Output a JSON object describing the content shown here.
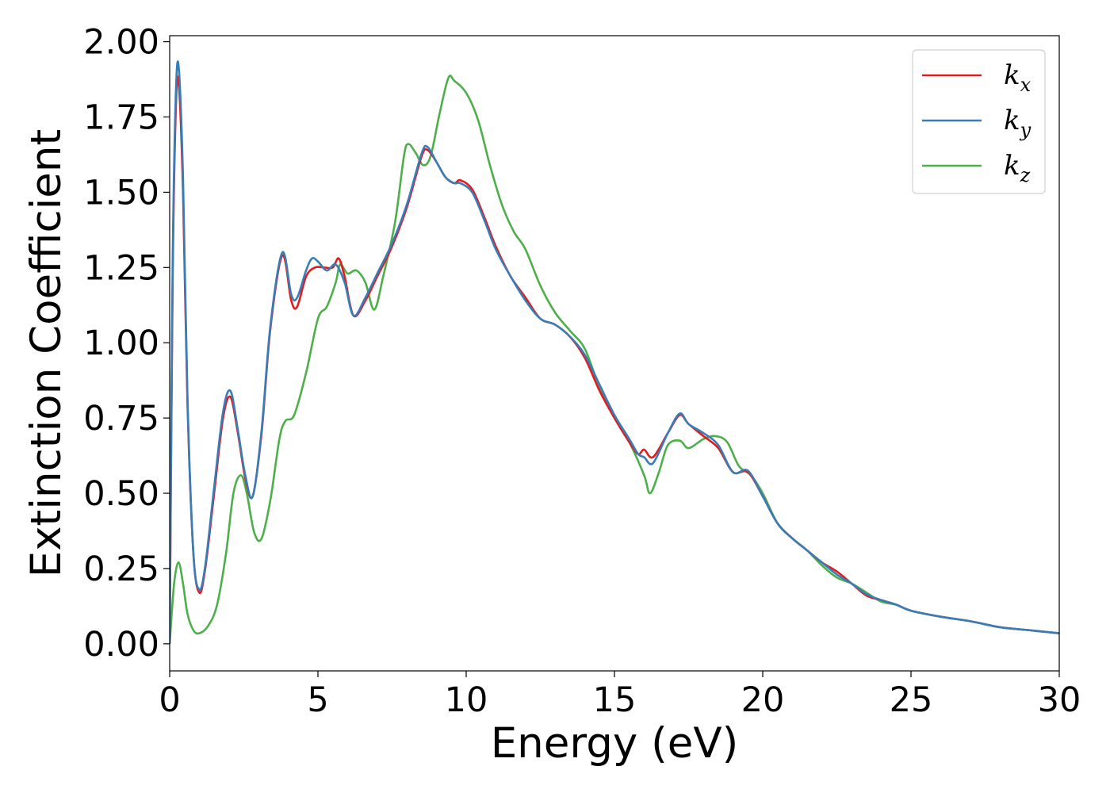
{
  "chart_data": {
    "type": "line",
    "title": "",
    "xlabel": "Energy (eV)",
    "ylabel": "Extinction Coefficient",
    "xlim": [
      0,
      30
    ],
    "ylim": [
      -0.09,
      2.02
    ],
    "xticks": [
      0,
      5,
      10,
      15,
      20,
      25,
      30
    ],
    "xtick_labels": [
      "0",
      "5",
      "10",
      "15",
      "20",
      "25",
      "30"
    ],
    "yticks": [
      0,
      0.25,
      0.5,
      0.75,
      1.0,
      1.25,
      1.5,
      1.75,
      2.0
    ],
    "ytick_labels": [
      "0.00",
      "0.25",
      "0.50",
      "0.75",
      "1.00",
      "1.25",
      "1.50",
      "1.75",
      "2.00"
    ],
    "grid": false,
    "legend_position": "top-right",
    "series": [
      {
        "name": "k_x",
        "label_base": "k",
        "label_sub": "x",
        "color": "#e41a1c",
        "x": [
          0,
          0.1,
          0.2,
          0.3,
          0.45,
          0.6,
          0.8,
          1.0,
          1.2,
          1.5,
          1.8,
          2.05,
          2.3,
          2.55,
          2.8,
          3.1,
          3.4,
          3.8,
          4.1,
          4.3,
          4.6,
          4.9,
          5.2,
          5.5,
          5.7,
          5.9,
          6.2,
          6.6,
          7.0,
          7.5,
          8.0,
          8.5,
          8.7,
          9.0,
          9.3,
          9.6,
          9.8,
          10.2,
          10.6,
          11.0,
          11.5,
          12.0,
          12.5,
          13.0,
          13.5,
          14.0,
          14.5,
          15.0,
          15.5,
          15.8,
          16.0,
          16.3,
          16.8,
          17.2,
          17.5,
          18.0,
          18.5,
          19.0,
          19.5,
          20.0,
          20.5,
          21.0,
          21.5,
          22.0,
          22.5,
          23.0,
          23.5,
          24.0,
          24.5,
          25.0,
          26.0,
          27.0,
          28.0,
          29.0,
          30.0
        ],
        "y": [
          0.0,
          1.2,
          1.75,
          1.87,
          1.5,
          0.8,
          0.3,
          0.17,
          0.25,
          0.5,
          0.75,
          0.82,
          0.7,
          0.55,
          0.49,
          0.7,
          1.05,
          1.29,
          1.14,
          1.12,
          1.22,
          1.25,
          1.25,
          1.25,
          1.28,
          1.22,
          1.09,
          1.14,
          1.22,
          1.32,
          1.45,
          1.62,
          1.64,
          1.6,
          1.55,
          1.53,
          1.54,
          1.51,
          1.42,
          1.32,
          1.22,
          1.15,
          1.08,
          1.06,
          1.02,
          0.95,
          0.84,
          0.75,
          0.67,
          0.63,
          0.645,
          0.62,
          0.7,
          0.76,
          0.73,
          0.69,
          0.65,
          0.57,
          0.57,
          0.49,
          0.4,
          0.35,
          0.31,
          0.27,
          0.24,
          0.2,
          0.16,
          0.145,
          0.13,
          0.11,
          0.09,
          0.075,
          0.055,
          0.045,
          0.035
        ]
      },
      {
        "name": "k_y",
        "label_base": "k",
        "label_sub": "y",
        "color": "#377eb8",
        "x": [
          0,
          0.1,
          0.2,
          0.3,
          0.45,
          0.6,
          0.8,
          1.0,
          1.2,
          1.5,
          1.8,
          2.05,
          2.3,
          2.55,
          2.8,
          3.1,
          3.4,
          3.8,
          4.1,
          4.3,
          4.6,
          4.8,
          5.0,
          5.3,
          5.6,
          5.9,
          6.2,
          6.6,
          7.0,
          7.5,
          8.0,
          8.5,
          8.7,
          9.0,
          9.3,
          9.6,
          9.8,
          10.2,
          10.6,
          11.0,
          11.5,
          12.0,
          12.5,
          13.0,
          13.5,
          14.0,
          14.5,
          15.0,
          15.5,
          15.8,
          16.0,
          16.3,
          16.8,
          17.2,
          17.5,
          18.0,
          18.5,
          19.0,
          19.5,
          20.0,
          20.5,
          21.0,
          21.5,
          22.0,
          22.5,
          23.0,
          23.5,
          24.0,
          24.5,
          25.0,
          26.0,
          27.0,
          28.0,
          29.0,
          30.0
        ],
        "y": [
          0.0,
          1.25,
          1.8,
          1.92,
          1.55,
          0.82,
          0.3,
          0.18,
          0.26,
          0.52,
          0.77,
          0.84,
          0.71,
          0.56,
          0.49,
          0.71,
          1.06,
          1.3,
          1.16,
          1.15,
          1.24,
          1.28,
          1.27,
          1.24,
          1.26,
          1.2,
          1.09,
          1.15,
          1.23,
          1.33,
          1.46,
          1.63,
          1.65,
          1.6,
          1.55,
          1.53,
          1.53,
          1.5,
          1.41,
          1.31,
          1.22,
          1.14,
          1.08,
          1.06,
          1.02,
          0.96,
          0.86,
          0.76,
          0.68,
          0.63,
          0.62,
          0.6,
          0.7,
          0.765,
          0.73,
          0.7,
          0.66,
          0.57,
          0.575,
          0.49,
          0.4,
          0.35,
          0.31,
          0.27,
          0.23,
          0.2,
          0.165,
          0.145,
          0.13,
          0.11,
          0.09,
          0.075,
          0.055,
          0.045,
          0.035
        ]
      },
      {
        "name": "k_z",
        "label_base": "k",
        "label_sub": "z",
        "color": "#4daf4a",
        "x": [
          0,
          0.15,
          0.3,
          0.45,
          0.6,
          0.8,
          1.0,
          1.3,
          1.6,
          1.9,
          2.15,
          2.4,
          2.6,
          2.85,
          3.1,
          3.4,
          3.7,
          3.9,
          4.2,
          4.6,
          5.0,
          5.3,
          5.6,
          5.75,
          6.0,
          6.3,
          6.6,
          6.9,
          7.2,
          7.6,
          7.9,
          8.05,
          8.3,
          8.55,
          8.8,
          9.1,
          9.4,
          9.6,
          10.0,
          10.4,
          10.8,
          11.2,
          11.6,
          12.0,
          12.5,
          13.0,
          13.5,
          14.0,
          14.5,
          15.0,
          15.5,
          16.0,
          16.2,
          16.5,
          16.8,
          17.2,
          17.5,
          18.0,
          18.4,
          18.8,
          19.2,
          19.6,
          20.0,
          20.5,
          21.0,
          21.5,
          22.0,
          22.5,
          23.0,
          23.5,
          24.0,
          24.5,
          25.0,
          26.0,
          27.0,
          28.0,
          29.0,
          30.0
        ],
        "y": [
          0.0,
          0.2,
          0.27,
          0.2,
          0.1,
          0.045,
          0.035,
          0.06,
          0.13,
          0.3,
          0.5,
          0.56,
          0.5,
          0.37,
          0.35,
          0.48,
          0.68,
          0.74,
          0.76,
          0.9,
          1.08,
          1.12,
          1.2,
          1.26,
          1.23,
          1.24,
          1.2,
          1.11,
          1.22,
          1.4,
          1.62,
          1.66,
          1.63,
          1.59,
          1.62,
          1.76,
          1.88,
          1.87,
          1.83,
          1.74,
          1.59,
          1.46,
          1.37,
          1.31,
          1.19,
          1.1,
          1.04,
          0.98,
          0.85,
          0.75,
          0.67,
          0.56,
          0.5,
          0.57,
          0.66,
          0.675,
          0.65,
          0.68,
          0.69,
          0.67,
          0.59,
          0.56,
          0.5,
          0.4,
          0.35,
          0.31,
          0.26,
          0.22,
          0.2,
          0.17,
          0.14,
          0.13,
          0.11,
          0.09,
          0.075,
          0.055,
          0.045,
          0.035
        ]
      }
    ]
  }
}
